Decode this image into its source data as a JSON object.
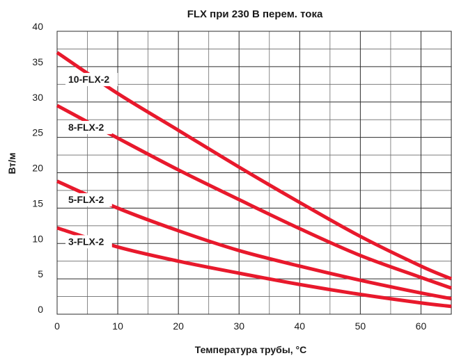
{
  "chart_data": {
    "type": "line",
    "title": "FLX при 230 В перем. тока",
    "xlabel": "Температура трубы, °C",
    "ylabel": "Вт/м",
    "xlim": [
      0,
      65
    ],
    "ylim": [
      0,
      40
    ],
    "x_ticks": [
      0,
      10,
      20,
      30,
      40,
      50,
      60
    ],
    "y_ticks": [
      0,
      5,
      10,
      15,
      20,
      25,
      30,
      35,
      40
    ],
    "grid": true,
    "line_color": "#e8192c",
    "series": [
      {
        "name": "10-FLX-2",
        "x": [
          0,
          10,
          20,
          30,
          40,
          50,
          60,
          65
        ],
        "values": [
          37,
          31.2,
          26,
          20.8,
          15.8,
          11,
          6.8,
          5
        ]
      },
      {
        "name": "8-FLX-2",
        "x": [
          0,
          10,
          20,
          30,
          40,
          50,
          60,
          65
        ],
        "values": [
          29.5,
          24.9,
          20.4,
          16.2,
          12.1,
          8.3,
          5.2,
          3.7
        ]
      },
      {
        "name": "5-FLX-2",
        "x": [
          0,
          10,
          20,
          30,
          40,
          50,
          60,
          65
        ],
        "values": [
          18.8,
          15,
          11.8,
          9,
          6.8,
          4.8,
          3,
          2.2
        ]
      },
      {
        "name": "3-FLX-2",
        "x": [
          0,
          10,
          20,
          30,
          40,
          50,
          60,
          65
        ],
        "values": [
          12.2,
          9.5,
          7.5,
          5.8,
          4.2,
          2.8,
          1.6,
          1.1
        ]
      }
    ]
  }
}
